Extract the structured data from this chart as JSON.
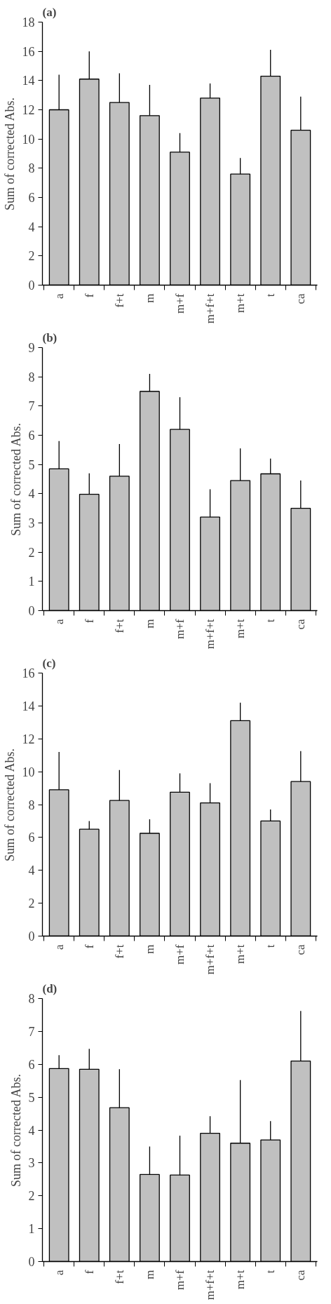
{
  "chart_data": [
    {
      "type": "bar",
      "title": "(a)",
      "ylabel": "Sum of corrected Abs.",
      "categories": [
        "a",
        "f",
        "f+t",
        "m",
        "m+f",
        "m+f+t",
        "m+t",
        "t",
        "ca"
      ],
      "color": "#c0c0c0",
      "values": [
        12.0,
        14.1,
        12.5,
        11.6,
        9.1,
        12.8,
        7.6,
        14.3,
        10.6
      ],
      "errors": [
        [
          12.0,
          14.4
        ],
        [
          14.1,
          16.0
        ],
        [
          12.5,
          14.5
        ],
        [
          11.6,
          13.7
        ],
        [
          9.1,
          10.4
        ],
        [
          12.8,
          13.8
        ],
        [
          7.6,
          8.7
        ],
        [
          14.3,
          16.1
        ],
        [
          10.6,
          12.9
        ]
      ],
      "ylim": [
        0,
        18
      ],
      "yticks": [
        0,
        2,
        4,
        6,
        8,
        10,
        12,
        14,
        16,
        18
      ],
      "grid": false
    },
    {
      "type": "bar",
      "title": "(b)",
      "ylabel": "Sum of corrected Abs.",
      "categories": [
        "a",
        "f",
        "f+t",
        "m",
        "m+f",
        "m+f+t",
        "m+t",
        "t",
        "ca"
      ],
      "color": "#c0c0c0",
      "values": [
        4.85,
        3.98,
        4.6,
        7.5,
        6.2,
        3.2,
        4.45,
        4.68,
        3.5
      ],
      "errors": [
        [
          4.85,
          5.8
        ],
        [
          3.98,
          4.7
        ],
        [
          4.6,
          5.7
        ],
        [
          7.5,
          8.1
        ],
        [
          6.2,
          7.3
        ],
        [
          3.2,
          4.15
        ],
        [
          4.45,
          5.55
        ],
        [
          4.68,
          5.2
        ],
        [
          3.5,
          4.45
        ]
      ],
      "ylim": [
        0,
        9
      ],
      "yticks": [
        0,
        1,
        2,
        3,
        4,
        5,
        6,
        7,
        8,
        9
      ],
      "grid": false
    },
    {
      "type": "bar",
      "title": "(c)",
      "ylabel": "Sum of corrected Abs.",
      "categories": [
        "a",
        "f",
        "f+t",
        "m",
        "m+f",
        "m+f+t",
        "m+t",
        "t",
        "ca"
      ],
      "color": "#c0c0c0",
      "values": [
        8.9,
        6.5,
        8.25,
        6.25,
        8.75,
        8.1,
        13.1,
        7.0,
        9.4
      ],
      "errors": [
        [
          8.9,
          11.2
        ],
        [
          6.5,
          7.0
        ],
        [
          8.25,
          10.1
        ],
        [
          6.25,
          7.1
        ],
        [
          8.75,
          9.9
        ],
        [
          8.1,
          9.3
        ],
        [
          13.1,
          14.2
        ],
        [
          7.0,
          7.7
        ],
        [
          9.4,
          11.25
        ]
      ],
      "ylim": [
        0,
        16
      ],
      "yticks": [
        0,
        2,
        4,
        6,
        8,
        10,
        12,
        14,
        16
      ],
      "grid": false
    },
    {
      "type": "bar",
      "title": "(d)",
      "ylabel": "Sum of corrected Abs.",
      "categories": [
        "a",
        "f",
        "f+t",
        "m",
        "m+f",
        "m+f+t",
        "m+t",
        "t",
        "ca"
      ],
      "color": "#c0c0c0",
      "values": [
        5.87,
        5.85,
        4.68,
        2.65,
        2.63,
        3.9,
        3.6,
        3.7,
        6.1
      ],
      "errors": [
        [
          5.87,
          6.28
        ],
        [
          5.85,
          6.47
        ],
        [
          4.68,
          5.85
        ],
        [
          2.65,
          3.5
        ],
        [
          2.63,
          3.83
        ],
        [
          3.9,
          4.42
        ],
        [
          3.6,
          5.52
        ],
        [
          3.7,
          4.27
        ],
        [
          6.1,
          7.62
        ]
      ],
      "ylim": [
        0,
        8
      ],
      "yticks": [
        0,
        1,
        2,
        3,
        4,
        5,
        6,
        7,
        8
      ],
      "grid": false
    }
  ]
}
